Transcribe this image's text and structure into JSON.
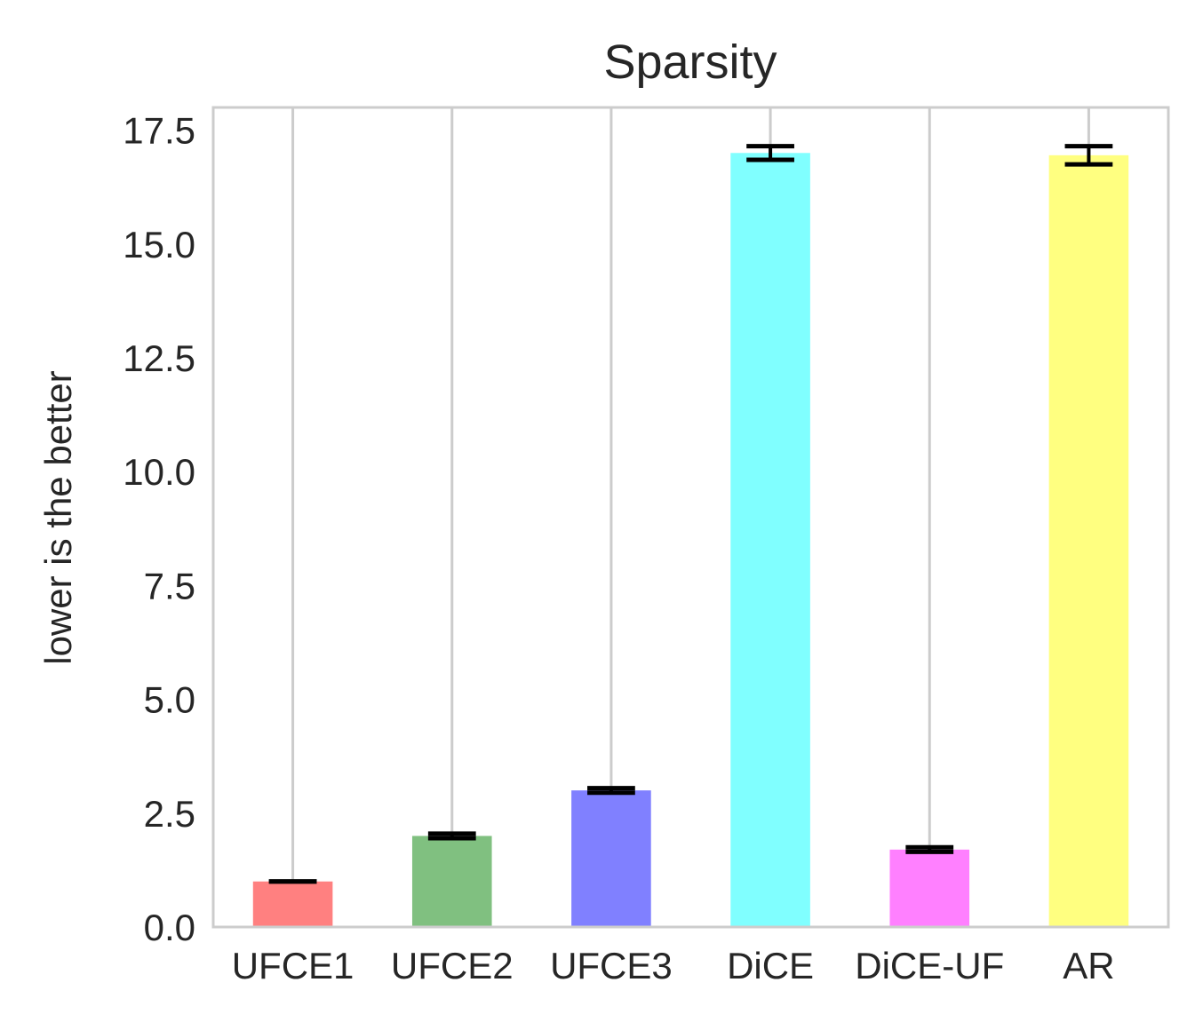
{
  "chart_data": {
    "type": "bar",
    "title": "Sparsity",
    "xlabel": "",
    "ylabel": "lower is the better",
    "categories": [
      "UFCE1",
      "UFCE2",
      "UFCE3",
      "DiCE",
      "DiCE-UF",
      "AR"
    ],
    "values": [
      1.0,
      2.0,
      3.0,
      17.0,
      1.7,
      16.95
    ],
    "errors": [
      0.0,
      0.05,
      0.05,
      0.15,
      0.05,
      0.2
    ],
    "colors": [
      "#ff8080",
      "#80c080",
      "#8080ff",
      "#80ffff",
      "#ff80ff",
      "#ffff80"
    ],
    "ylim": [
      0,
      18
    ],
    "yticks": [
      "0.0",
      "2.5",
      "5.0",
      "7.5",
      "10.0",
      "12.5",
      "15.0",
      "17.5"
    ],
    "ytick_values": [
      0,
      2.5,
      5,
      7.5,
      10,
      12.5,
      15,
      17.5
    ],
    "grid": "vertical",
    "legend": "none"
  }
}
